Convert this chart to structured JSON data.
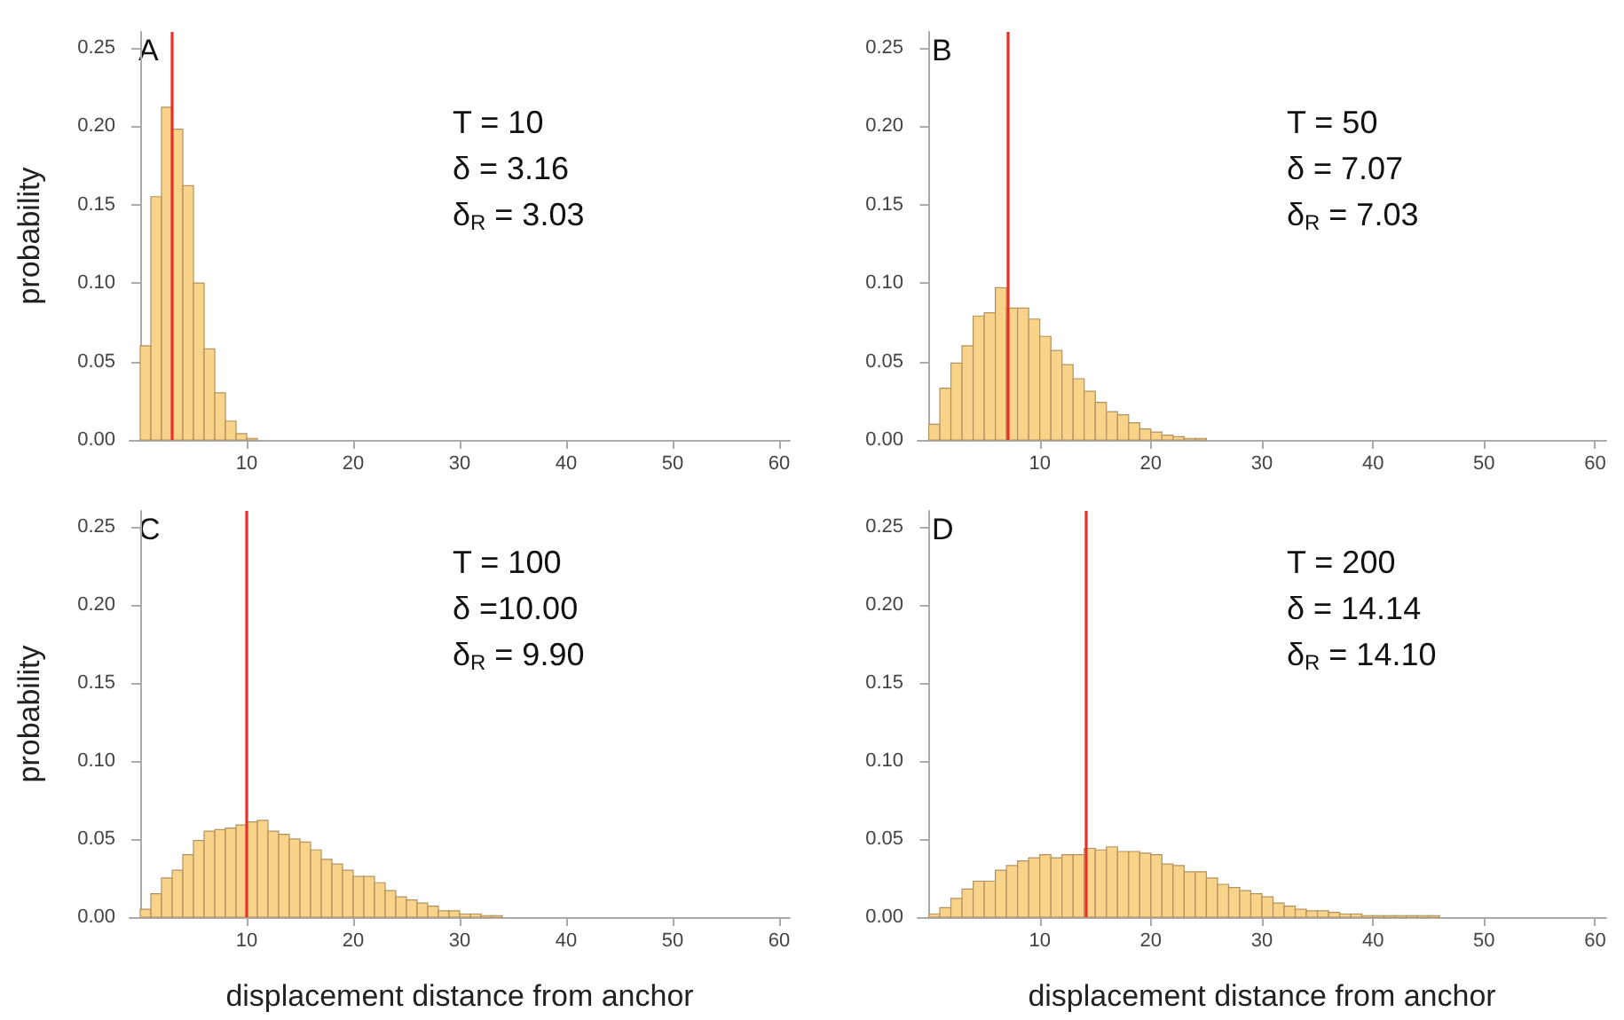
{
  "chart_data": [
    {
      "type": "histogram",
      "title": "A",
      "ylabel": "probability",
      "color": "#f8d38a",
      "annotations": [
        "T = 10",
        "δ = 3.16",
        "δ$_{R}$ = 3.03"
      ],
      "bins": [
        0,
        1,
        2,
        3,
        4,
        5,
        6,
        7,
        8,
        9,
        10,
        11
      ],
      "values": [
        0.06,
        0.155,
        0.212,
        0.198,
        0.162,
        0.1,
        0.058,
        0.03,
        0.012,
        0.004,
        0.001
      ],
      "ref_lines": [
        {
          "axis": "x",
          "value": 3.03,
          "color": "#e8302a"
        }
      ],
      "xlim": [
        -1,
        61
      ],
      "xticks": [
        10,
        20,
        30,
        40,
        50,
        60
      ],
      "ylim": [
        0,
        0.26
      ],
      "yticks": [
        {
          "value": 0,
          "label": "0.00"
        },
        {
          "value": 0.05,
          "label": "0.05"
        },
        {
          "value": 0.1,
          "label": "0.10"
        },
        {
          "value": 0.15,
          "label": "0.15"
        },
        {
          "value": 0.2,
          "label": "0.20"
        },
        {
          "value": 0.25,
          "label": "0.25"
        }
      ]
    },
    {
      "type": "histogram",
      "title": "B",
      "color": "#f8d38a",
      "annotations": [
        "T = 50",
        "δ = 7.07",
        "δ$_{R}$ = 7.03"
      ],
      "bins": [
        0,
        1,
        2,
        3,
        4,
        5,
        6,
        7,
        8,
        9,
        10,
        11,
        12,
        13,
        14,
        15,
        16,
        17,
        18,
        19,
        20,
        21,
        22,
        23,
        24,
        25
      ],
      "values": [
        0.01,
        0.033,
        0.049,
        0.06,
        0.079,
        0.081,
        0.097,
        0.084,
        0.084,
        0.077,
        0.066,
        0.057,
        0.048,
        0.039,
        0.031,
        0.024,
        0.018,
        0.016,
        0.011,
        0.007,
        0.005,
        0.003,
        0.002,
        0.001,
        0.001
      ],
      "ref_lines": [
        {
          "axis": "x",
          "value": 7.03,
          "color": "#e8302a"
        }
      ],
      "xlim": [
        -1,
        61
      ],
      "xticks": [
        10,
        20,
        30,
        40,
        50,
        60
      ],
      "ylim": [
        0,
        0.26
      ],
      "yticks": [
        {
          "value": 0,
          "label": "0.00"
        },
        {
          "value": 0.05,
          "label": "0.05"
        },
        {
          "value": 0.1,
          "label": "0.10"
        },
        {
          "value": 0.15,
          "label": "0.15"
        },
        {
          "value": 0.2,
          "label": "0.20"
        },
        {
          "value": 0.25,
          "label": "0.25"
        }
      ]
    },
    {
      "type": "histogram",
      "title": "C",
      "ylabel": "probability",
      "xlabel": "displacement distance from anchor",
      "color": "#f8d38a",
      "annotations": [
        "T = 100",
        "δ =10.00",
        "δ$_{R}$ = 9.90"
      ],
      "bins": [
        0,
        1,
        2,
        3,
        4,
        5,
        6,
        7,
        8,
        9,
        10,
        11,
        12,
        13,
        14,
        15,
        16,
        17,
        18,
        19,
        20,
        21,
        22,
        23,
        24,
        25,
        26,
        27,
        28,
        29,
        30,
        31,
        32,
        33,
        34
      ],
      "values": [
        0.005,
        0.015,
        0.025,
        0.03,
        0.04,
        0.049,
        0.055,
        0.056,
        0.057,
        0.059,
        0.061,
        0.062,
        0.055,
        0.053,
        0.05,
        0.048,
        0.043,
        0.037,
        0.034,
        0.03,
        0.026,
        0.026,
        0.022,
        0.017,
        0.013,
        0.011,
        0.009,
        0.007,
        0.004,
        0.004,
        0.002,
        0.002,
        0.001,
        0.001
      ],
      "ref_lines": [
        {
          "axis": "x",
          "value": 9.9,
          "color": "#e8302a"
        }
      ],
      "xlim": [
        -1,
        61
      ],
      "xticks": [
        10,
        20,
        30,
        40,
        50,
        60
      ],
      "ylim": [
        0,
        0.26
      ],
      "yticks": [
        {
          "value": 0,
          "label": "0.00"
        },
        {
          "value": 0.05,
          "label": "0.05"
        },
        {
          "value": 0.1,
          "label": "0.10"
        },
        {
          "value": 0.15,
          "label": "0.15"
        },
        {
          "value": 0.2,
          "label": "0.20"
        },
        {
          "value": 0.25,
          "label": "0.25"
        }
      ]
    },
    {
      "type": "histogram",
      "title": "D",
      "xlabel": "displacement distance from anchor",
      "color": "#f8d38a",
      "annotations": [
        "T = 200",
        "δ = 14.14",
        "δ$_{R}$ = 14.10"
      ],
      "bins": [
        0,
        1,
        2,
        3,
        4,
        5,
        6,
        7,
        8,
        9,
        10,
        11,
        12,
        13,
        14,
        15,
        16,
        17,
        18,
        19,
        20,
        21,
        22,
        23,
        24,
        25,
        26,
        27,
        28,
        29,
        30,
        31,
        32,
        33,
        34,
        35,
        36,
        37,
        38,
        39,
        40,
        41,
        42,
        43,
        44,
        45,
        46
      ],
      "values": [
        0.002,
        0.006,
        0.012,
        0.018,
        0.023,
        0.023,
        0.03,
        0.033,
        0.036,
        0.038,
        0.04,
        0.038,
        0.04,
        0.04,
        0.044,
        0.043,
        0.045,
        0.042,
        0.042,
        0.041,
        0.04,
        0.034,
        0.033,
        0.029,
        0.029,
        0.025,
        0.021,
        0.019,
        0.017,
        0.015,
        0.013,
        0.009,
        0.007,
        0.005,
        0.004,
        0.004,
        0.003,
        0.002,
        0.002,
        0.001,
        0.001,
        0.001,
        0.001,
        0.001,
        0.001,
        0.001
      ],
      "ref_lines": [
        {
          "axis": "x",
          "value": 14.1,
          "color": "#e8302a"
        }
      ],
      "xlim": [
        -1,
        61
      ],
      "xticks": [
        10,
        20,
        30,
        40,
        50,
        60
      ],
      "ylim": [
        0,
        0.26
      ],
      "yticks": [
        {
          "value": 0,
          "label": "0.00"
        },
        {
          "value": 0.05,
          "label": "0.05"
        },
        {
          "value": 0.1,
          "label": "0.10"
        },
        {
          "value": 0.15,
          "label": "0.15"
        },
        {
          "value": 0.2,
          "label": "0.20"
        },
        {
          "value": 0.25,
          "label": "0.25"
        }
      ]
    }
  ]
}
